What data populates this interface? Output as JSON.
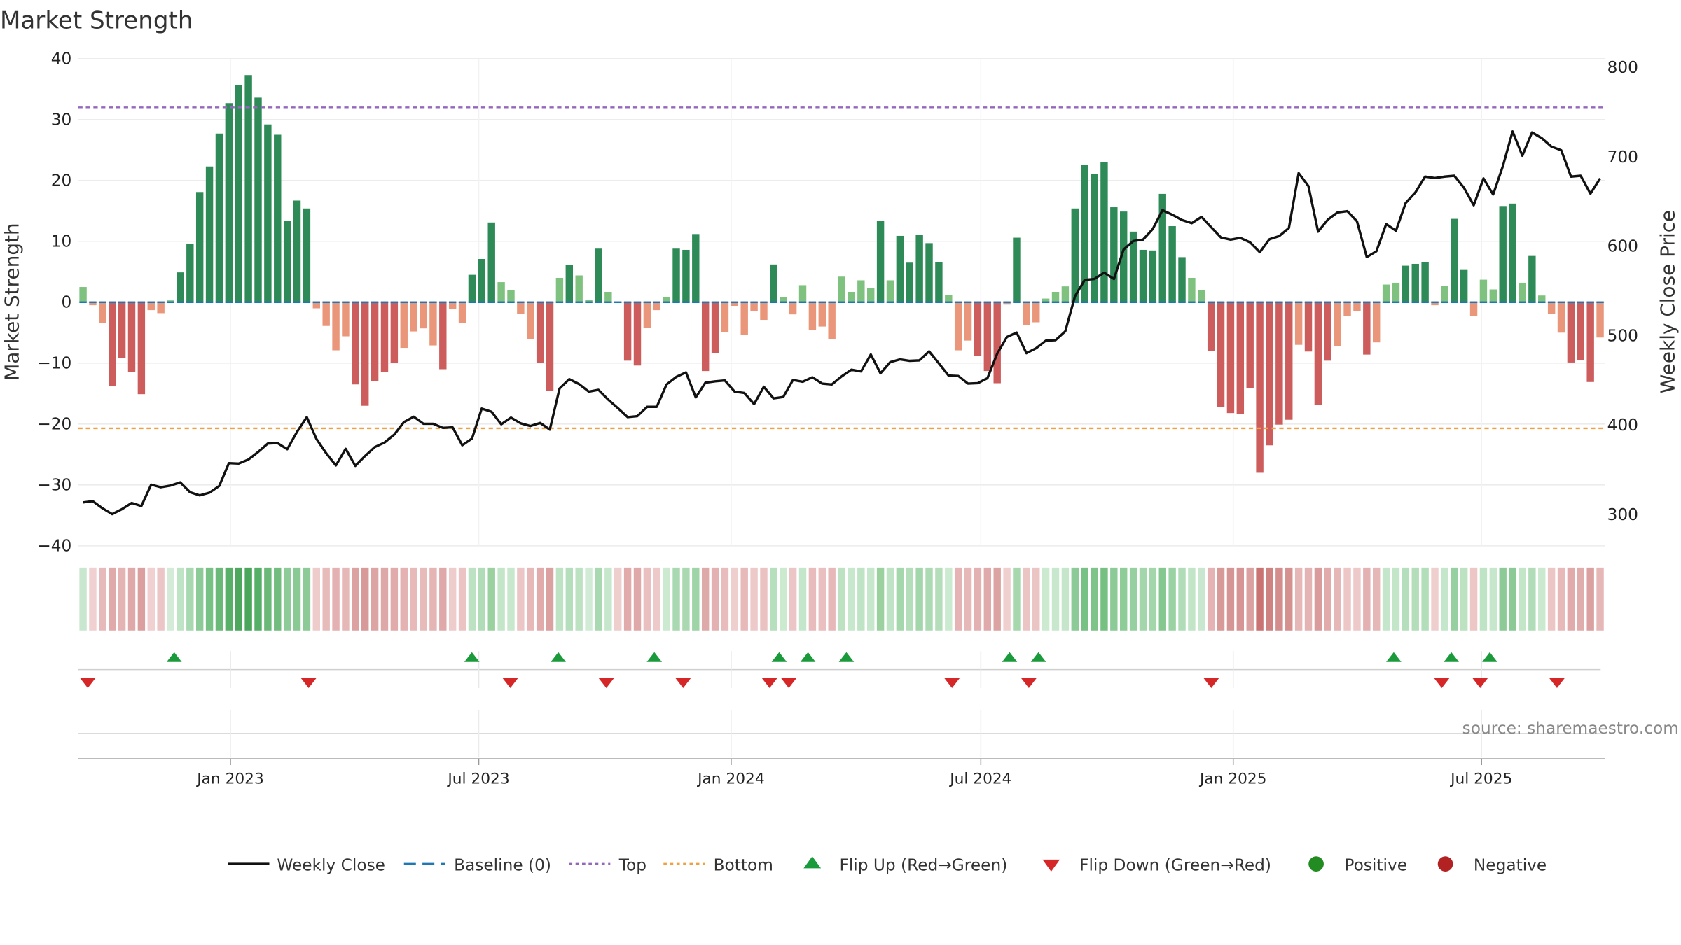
{
  "chart_data": {
    "type": "bar",
    "title": "Market Strength",
    "ylabel": "Market Strength",
    "y2label": "Weekly Close Price",
    "ylim": [
      -40,
      40
    ],
    "y2lim": [
      265,
      810
    ],
    "y_ticks": [
      -40,
      -30,
      -20,
      -10,
      0,
      10,
      20,
      30,
      40
    ],
    "y_tick_labels": [
      "−40",
      "−30",
      "−20",
      "−10",
      "0",
      "10",
      "20",
      "30",
      "40"
    ],
    "y2_ticks": [
      300,
      400,
      500,
      600,
      700,
      800
    ],
    "y2_tick_labels": [
      "300",
      "400",
      "500",
      "600",
      "700",
      "800"
    ],
    "x_start": "2022-09-12",
    "x_end": "2025-09-29",
    "x_ticks": [
      "2023-01-01",
      "2023-07-01",
      "2024-01-01",
      "2024-07-01",
      "2025-01-01",
      "2025-07-01"
    ],
    "x_tick_labels": [
      "Jan 2023",
      "Jul 2023",
      "Jan 2024",
      "Jul 2024",
      "Jan 2025",
      "Jul 2025"
    ],
    "top_threshold": 32,
    "bottom_threshold": -20.7,
    "grid": true,
    "legend_position": "bottom-center",
    "colors": {
      "pos_strong": "#2e8b57",
      "pos_weak": "#7fc27f",
      "neg_strong": "#cd5c5c",
      "neg_weak": "#e9967a",
      "close_line": "#111111",
      "baseline": "#1f77b4",
      "top_line": "#9467bd",
      "bottom_line": "#f0a040",
      "flip_up": "#1a9a3a",
      "flip_down": "#d62728",
      "positive": "#228b22",
      "negative": "#b22222"
    },
    "strength": [
      2.5,
      -0.5,
      -3.4,
      -13.8,
      -9.2,
      -11.5,
      -15.1,
      -1.3,
      -1.8,
      0.3,
      4.9,
      9.6,
      18.1,
      22.3,
      27.7,
      32.7,
      35.7,
      37.3,
      33.6,
      29.2,
      27.5,
      13.4,
      16.7,
      15.4,
      -1,
      -3.9,
      -7.9,
      -5.6,
      -13.5,
      -17,
      -13,
      -11.4,
      -10,
      -7.5,
      -4.8,
      -4.3,
      -7.1,
      -11,
      -1.1,
      -3.4,
      4.5,
      7.1,
      13.1,
      3.3,
      2,
      -1.9,
      -6,
      -10,
      -14.6,
      4,
      6.1,
      4.4,
      0.4,
      8.8,
      1.7,
      0,
      -9.6,
      -10.4,
      -4.2,
      -1.3,
      0.8,
      8.8,
      8.6,
      11.2,
      -11.3,
      -8.3,
      -4.9,
      -0.6,
      -5.4,
      -1.5,
      -2.9,
      6.2,
      0.8,
      -2,
      2.8,
      -4.6,
      -4,
      -6.1,
      4.2,
      1.7,
      3.6,
      2.3,
      13.4,
      3.6,
      10.9,
      6.5,
      11.1,
      9.7,
      6.6,
      1.2,
      -7.9,
      -6.3,
      -8.8,
      -11.3,
      -13.3,
      -0.4,
      10.6,
      -3.7,
      -3.3,
      0.6,
      1.7,
      2.6,
      15.4,
      22.6,
      21.1,
      23,
      15.6,
      14.9,
      11.6,
      8.6,
      8.5,
      17.8,
      12.5,
      7.4,
      4,
      2,
      -8,
      -17.2,
      -18.2,
      -18.3,
      -14.1,
      -28,
      -23.5,
      -20.1,
      -19.3,
      -7,
      -8.1,
      -16.9,
      -9.6,
      -7.2,
      -2.3,
      -1.5,
      -8.6,
      -6.6,
      2.9,
      3.2,
      6,
      6.3,
      6.6,
      -0.5,
      2.7,
      13.7,
      5.3,
      -2.3,
      3.7,
      2.1,
      15.8,
      16.2,
      3.2,
      7.6,
      1.1,
      -1.9,
      -5,
      -9.9,
      -9.5,
      -13.1,
      -5.8
    ],
    "weekly_close": [
      313.5,
      315,
      307,
      300.5,
      306,
      313,
      309.5,
      333.5,
      330.5,
      332.5,
      336,
      325,
      321.5,
      324.5,
      332,
      357.5,
      357,
      361.5,
      370,
      379.5,
      380,
      373,
      392.5,
      409,
      384.5,
      368.5,
      355,
      373.5,
      354.5,
      365.5,
      375.5,
      380.5,
      389.5,
      403.5,
      409.5,
      401.5,
      401.5,
      397,
      397.5,
      377.5,
      385,
      418.5,
      415,
      401,
      408.5,
      402,
      399,
      402.5,
      395,
      441,
      451.5,
      446,
      437.5,
      439.5,
      428.5,
      419,
      409,
      410,
      420.5,
      420.5,
      445.5,
      454,
      459,
      431,
      447.5,
      449,
      450,
      437.5,
      436,
      423.5,
      443,
      430,
      431.5,
      450.5,
      448.5,
      453.5,
      446.5,
      445.5,
      454.5,
      462,
      460,
      479,
      458,
      470.5,
      473.5,
      472,
      472.5,
      482.5,
      469,
      455.5,
      455,
      446.5,
      447,
      452.5,
      480,
      498.5,
      503.5,
      480.5,
      486,
      494.5,
      495,
      505,
      544,
      562.5,
      563.5,
      570.5,
      563.5,
      596.5,
      606,
      607.5,
      619.5,
      640.5,
      635.5,
      629.5,
      626,
      633,
      621.5,
      610,
      607.5,
      609.5,
      604.5,
      593.5,
      608,
      611.5,
      620.5,
      682,
      667.5,
      616.5,
      630,
      638,
      639.5,
      628,
      588,
      594.5,
      625,
      617.5,
      648.5,
      660.5,
      678,
      676.5,
      678,
      679,
      665.5,
      646,
      676,
      658,
      690,
      728.5,
      701.5,
      727.5,
      721,
      711.5,
      707.5,
      678,
      679,
      659,
      676
    ],
    "heat_colors": [
      "#c9e7cf",
      "#f0d0d0",
      "#e6baba",
      "#e0aaaa",
      "#e4b3b3",
      "#e0a9a9",
      "#dc9f9f",
      "#f0d0d0",
      "#ecc6c6",
      "#d4ecd7",
      "#bfe3c5",
      "#a8d8b0",
      "#8ccb97",
      "#78c184",
      "#6ab978",
      "#58b068",
      "#4da85d",
      "#49a65a",
      "#56af66",
      "#6ab978",
      "#71bc7e",
      "#8dcc98",
      "#89c994",
      "#8ccb97",
      "#efcccc",
      "#e8bbbb",
      "#e3b1b1",
      "#e6b7b7",
      "#dca2a2",
      "#d89999",
      "#dda4a4",
      "#dea8a8",
      "#e1abab",
      "#e4b2b2",
      "#e7b9b9",
      "#e8bbbb",
      "#e5b4b4",
      "#e0a9a9",
      "#efcccc",
      "#ebc3c3",
      "#bde2c3",
      "#b0dcb8",
      "#9ad19f",
      "#c3e6c9",
      "#c8e8cd",
      "#ecc6c6",
      "#e6b8b8",
      "#e1abab",
      "#dba0a0",
      "#bee3c4",
      "#b5dfbc",
      "#bce2c2",
      "#d2ebd6",
      "#a9d9b0",
      "#c6e7cb",
      "#efcece",
      "#e1abab",
      "#e0a9a9",
      "#e9bfbf",
      "#eec9c9",
      "#cceacf",
      "#a9d9b0",
      "#aad9b1",
      "#9ed4a6",
      "#dea9a9",
      "#e3b1b1",
      "#e8bcbc",
      "#efcece",
      "#e7b9b9",
      "#eec9c9",
      "#ebc2c2",
      "#b6dfbd",
      "#cceacf",
      "#ecc6c6",
      "#c4e6ca",
      "#e8bcbc",
      "#e9bfbf",
      "#e6b8b8",
      "#bce2c2",
      "#c7e8cc",
      "#bfe3c5",
      "#c6e7cb",
      "#9ad19f",
      "#bfe3c5",
      "#a5d7ad",
      "#b4deba",
      "#a3d6ab",
      "#acdab3",
      "#b4deba",
      "#cceacf",
      "#e5b3b3",
      "#e7b8b8",
      "#e3b1b1",
      "#e0aaaa",
      "#dca3a3",
      "#f0cfcf",
      "#a6d7ad",
      "#ebc4c4",
      "#ebc4c4",
      "#cceacf",
      "#c8e8cd",
      "#c5e6ca",
      "#8ccb97",
      "#78c184",
      "#7ec489",
      "#76c082",
      "#8ccb97",
      "#8ecc98",
      "#97d0a0",
      "#a3d6ab",
      "#a4d6ab",
      "#84c78f",
      "#9bd2a3",
      "#b0dcb8",
      "#c2e4c7",
      "#c9e7cf",
      "#e5b3b3",
      "#d89999",
      "#d69595",
      "#d69494",
      "#dba0a0",
      "#c97373",
      "#cf8282",
      "#d48d8d",
      "#d59090",
      "#e6b7b7",
      "#e4b3b3",
      "#d99b9b",
      "#e1abab",
      "#e6b7b7",
      "#edc6c6",
      "#eec9c9",
      "#e3b1b1",
      "#e6b7b7",
      "#c4e6ca",
      "#c3e5c8",
      "#b5dfbc",
      "#b4deba",
      "#b3deba",
      "#efcece",
      "#c4e6ca",
      "#97d0a0",
      "#bce2c2",
      "#edc6c6",
      "#bfe3c5",
      "#c6e7cb",
      "#8ccb97",
      "#8bca96",
      "#c3e5c8",
      "#b0dcb8",
      "#cbe9cf",
      "#ecc5c5",
      "#e7b9b9",
      "#e1abab",
      "#e1acac",
      "#dba0a0",
      "#e6b7b7"
    ],
    "flip_up": [
      "2022-11-21",
      "2023-06-26",
      "2023-08-28",
      "2023-11-06",
      "2024-02-05",
      "2024-02-26",
      "2024-03-25",
      "2024-07-22",
      "2024-08-12",
      "2025-04-28",
      "2025-06-09",
      "2025-07-07"
    ],
    "flip_down": [
      "2022-09-19",
      "2023-02-27",
      "2023-07-24",
      "2023-10-02",
      "2023-11-27",
      "2024-01-29",
      "2024-02-12",
      "2024-06-10",
      "2024-08-05",
      "2024-12-16",
      "2025-06-02",
      "2025-06-30",
      "2025-08-25"
    ],
    "legend": [
      "Weekly Close",
      "Baseline (0)",
      "Top",
      "Bottom",
      "Flip Up (Red→Green)",
      "Flip Down (Green→Red)",
      "Positive",
      "Negative"
    ],
    "source": "source: sharemaestro.com"
  }
}
